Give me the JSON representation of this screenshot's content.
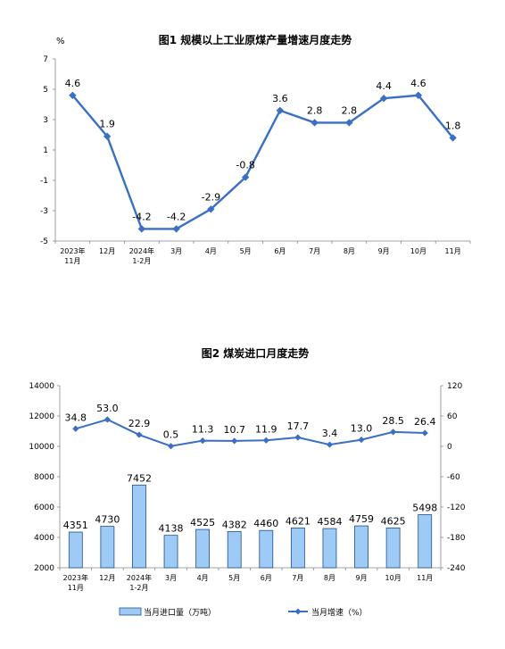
{
  "chart_data": [
    {
      "type": "line",
      "title": "图1  规模以上工业原煤产量增速月度走势",
      "ylabel": "%",
      "categories": [
        [
          "2023年",
          "11月"
        ],
        [
          "12月"
        ],
        [
          "2024年",
          "1-2月"
        ],
        [
          "3月"
        ],
        [
          "4月"
        ],
        [
          "5月"
        ],
        [
          "6月"
        ],
        [
          "7月"
        ],
        [
          "8月"
        ],
        [
          "9月"
        ],
        [
          "10月"
        ],
        [
          "11月"
        ]
      ],
      "values": [
        4.6,
        1.9,
        -4.2,
        -4.2,
        -2.9,
        -0.8,
        3.6,
        2.8,
        2.8,
        4.4,
        4.6,
        1.8
      ],
      "data_labels": [
        "4.6",
        "1.9",
        "-4.2",
        "-4.2",
        "-2.9",
        "-0.8",
        "3.6",
        "2.8",
        "2.8",
        "4.4",
        "4.6",
        "1.8"
      ],
      "ylim": [
        -5,
        7
      ],
      "yticks": [
        "7",
        "5",
        "3",
        "1",
        "-1",
        "-3",
        "-5"
      ],
      "grid": false,
      "color": "#3a6fc4"
    },
    {
      "type": "bar",
      "title": "图2  煤炭进口月度走势",
      "categories": [
        [
          "2023年",
          "11月"
        ],
        [
          "12月"
        ],
        [
          "2024年",
          "1-2月"
        ],
        [
          "3月"
        ],
        [
          "4月"
        ],
        [
          "5月"
        ],
        [
          "6月"
        ],
        [
          "7月"
        ],
        [
          "8月"
        ],
        [
          "9月"
        ],
        [
          "10月"
        ],
        [
          "11月"
        ]
      ],
      "series": [
        {
          "name": "当月进口量（万吨）",
          "type": "bar",
          "axis": "left",
          "values": [
            4351,
            4730,
            7452,
            4138,
            4525,
            4382,
            4460,
            4621,
            4584,
            4759,
            4625,
            5498
          ],
          "data_labels": [
            "4351",
            "4730",
            "7452",
            "4138",
            "4525",
            "4382",
            "4460",
            "4621",
            "4584",
            "4759",
            "4625",
            "5498"
          ],
          "color": "#9ecbf5"
        },
        {
          "name": "当月增速（%）",
          "type": "line",
          "axis": "right",
          "values": [
            34.8,
            53.0,
            22.9,
            0.5,
            11.3,
            10.7,
            11.9,
            17.7,
            3.4,
            13.0,
            28.5,
            26.4
          ],
          "data_labels": [
            "34.8",
            "53.0",
            "22.9",
            "0.5",
            "11.3",
            "10.7",
            "11.9",
            "17.7",
            "3.4",
            "13.0",
            "28.5",
            "26.4"
          ],
          "color": "#3a6fc4"
        }
      ],
      "ylim_left": [
        2000,
        14000
      ],
      "yticks_left": [
        "14000",
        "12000",
        "10000",
        "8000",
        "6000",
        "4000",
        "2000"
      ],
      "ylim_right": [
        -240,
        120
      ],
      "yticks_right": [
        "120",
        "60",
        "0",
        "-60",
        "-120",
        "-180",
        "-240"
      ],
      "legend_placement": "bottom",
      "grid": false
    }
  ]
}
